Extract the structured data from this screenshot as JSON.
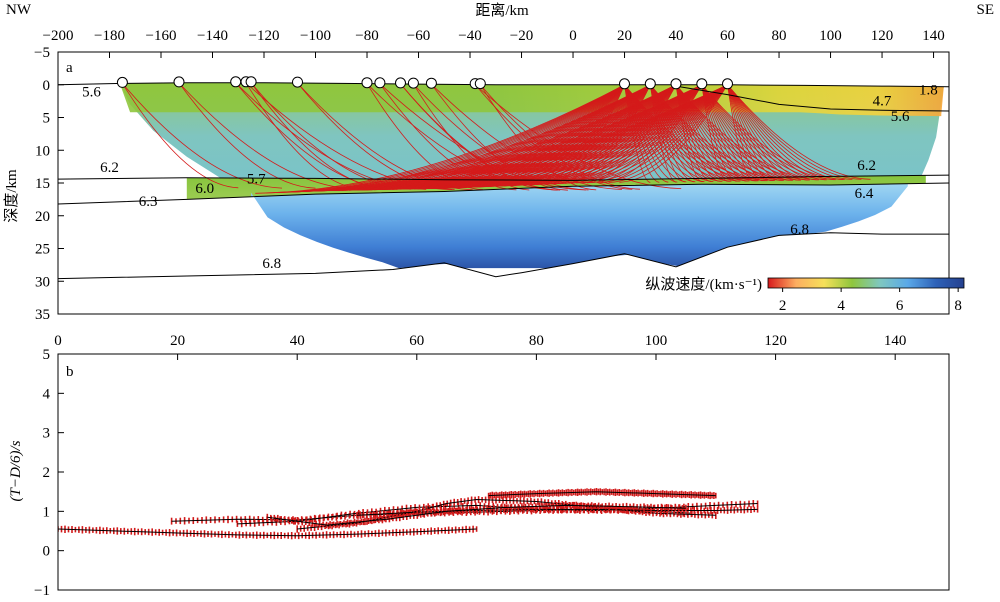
{
  "chart_data": [
    {
      "panel": "a",
      "type": "scatter",
      "title": "",
      "xlabel": "距离/km",
      "ylabel": "深度/km",
      "x_ticks": [
        -200,
        -180,
        -160,
        -140,
        -120,
        -100,
        -80,
        -60,
        -40,
        -20,
        0,
        20,
        40,
        60,
        80,
        100,
        120,
        140
      ],
      "y_ticks": [
        -5,
        0,
        5,
        10,
        15,
        20,
        25,
        30,
        35
      ],
      "xlim": [
        -200,
        146
      ],
      "ylim": [
        -5,
        35
      ],
      "y_inverted": true,
      "corner_labels": {
        "left": "NW",
        "right": "SE"
      },
      "colorbar": {
        "label": "纵波速度/(km·s⁻¹)",
        "min": 1.5,
        "max": 8.2,
        "ticks": [
          2,
          4,
          6,
          8
        ],
        "colors": [
          "#d7191c",
          "#fdae61",
          "#f6e05a",
          "#8fc63d",
          "#7fc8c0",
          "#5aa8e8",
          "#2e62b8",
          "#24408f"
        ]
      },
      "stations_x": [
        -175,
        -153,
        -131,
        -127,
        -125,
        -107,
        -80,
        -75,
        -67,
        -62,
        -55,
        -38,
        -36,
        20,
        30,
        40,
        50,
        60
      ],
      "interfaces": [
        {
          "name": "surface",
          "x": [
            -200,
            -175,
            -150,
            -120,
            -90,
            -60,
            -30,
            0,
            30,
            60,
            90,
            120,
            146
          ],
          "y": [
            0,
            -0.2,
            -0.3,
            -0.3,
            -0.2,
            -0.1,
            0,
            0,
            0,
            0,
            0.1,
            0.2,
            0.3
          ]
        },
        {
          "name": "basin-base",
          "x": [
            40,
            60,
            80,
            100,
            120,
            146
          ],
          "y": [
            0.2,
            1.5,
            3.0,
            3.7,
            3.9,
            4.0
          ]
        },
        {
          "name": "upper-crust-base",
          "x": [
            -200,
            -150,
            -100,
            -50,
            0,
            50,
            100,
            146
          ],
          "y": [
            14.4,
            14.2,
            14.3,
            14.5,
            14.6,
            14.3,
            14.0,
            13.8
          ]
        },
        {
          "name": "mid-crust-base",
          "x": [
            -200,
            -150,
            -100,
            -50,
            0,
            50,
            100,
            146
          ],
          "y": [
            18.2,
            17.5,
            16.7,
            16.3,
            15.5,
            15.2,
            15.3,
            15.0
          ]
        },
        {
          "name": "lower-crust-base",
          "x": [
            -200,
            -150,
            -100,
            -70,
            -50,
            -30,
            -20,
            0,
            20,
            40,
            60,
            80,
            100,
            120,
            146
          ],
          "y": [
            29.6,
            29.2,
            28.8,
            28.2,
            27.2,
            29.3,
            28.7,
            27.3,
            25.8,
            27.8,
            24.8,
            23.0,
            22.6,
            22.8,
            22.8
          ]
        }
      ],
      "velocity_labels": [
        {
          "text": "5.6",
          "x": -187,
          "y": 1.8
        },
        {
          "text": "1.8",
          "x": 138,
          "y": 1.5
        },
        {
          "text": "4.7",
          "x": 120,
          "y": 3.2
        },
        {
          "text": "5.6",
          "x": 127,
          "y": 5.5
        },
        {
          "text": "6.2",
          "x": -180,
          "y": 13.3
        },
        {
          "text": "5.7",
          "x": -123,
          "y": 15.1
        },
        {
          "text": "6.0",
          "x": -143,
          "y": 16.5
        },
        {
          "text": "6.3",
          "x": -165,
          "y": 18.5
        },
        {
          "text": "6.2",
          "x": 114,
          "y": 13.0
        },
        {
          "text": "6.4",
          "x": 113,
          "y": 17.3
        },
        {
          "text": "6.8",
          "x": 88,
          "y": 22.8
        },
        {
          "text": "6.8",
          "x": -117,
          "y": 28.0
        }
      ]
    },
    {
      "panel": "b",
      "type": "scatter",
      "title": "",
      "xlabel": "",
      "ylabel": "(T−D/6)/s",
      "x_ticks": [
        0,
        20,
        40,
        60,
        80,
        100,
        120,
        140
      ],
      "y_ticks": [
        -1,
        0,
        1,
        2,
        3,
        4,
        5
      ],
      "xlim": [
        0,
        149
      ],
      "ylim": [
        -1,
        5
      ],
      "series": [
        {
          "x": [
            0,
            10,
            20,
            30,
            40,
            50,
            60,
            70
          ],
          "y": [
            0.55,
            0.5,
            0.45,
            0.4,
            0.38,
            0.42,
            0.48,
            0.55
          ]
        },
        {
          "x": [
            19,
            30,
            40,
            50,
            60,
            70,
            80,
            90,
            100,
            106
          ],
          "y": [
            0.75,
            0.8,
            0.78,
            0.9,
            0.95,
            0.98,
            1.02,
            1.05,
            1.0,
            0.95
          ]
        },
        {
          "x": [
            30,
            40,
            50,
            60,
            70,
            80,
            90,
            100,
            110,
            117
          ],
          "y": [
            0.68,
            0.75,
            0.95,
            1.1,
            1.15,
            1.05,
            1.02,
            1.08,
            1.15,
            1.2
          ]
        },
        {
          "x": [
            40,
            50,
            60,
            65,
            70,
            80,
            90,
            100,
            110
          ],
          "y": [
            0.55,
            0.7,
            1.0,
            1.2,
            1.3,
            1.25,
            1.1,
            0.95,
            0.9
          ]
        },
        {
          "x": [
            50,
            60,
            70,
            80,
            90,
            100,
            110,
            117
          ],
          "y": [
            0.9,
            0.98,
            1.02,
            1.05,
            1.05,
            1.02,
            1.02,
            1.05
          ]
        },
        {
          "x": [
            72,
            80,
            90,
            100,
            110
          ],
          "y": [
            1.4,
            1.45,
            1.5,
            1.45,
            1.4
          ]
        },
        {
          "x": [
            35,
            45,
            55,
            65,
            75,
            85,
            95,
            105
          ],
          "y": [
            0.85,
            0.65,
            0.8,
            1.0,
            1.1,
            1.15,
            1.12,
            1.08
          ]
        }
      ]
    }
  ]
}
